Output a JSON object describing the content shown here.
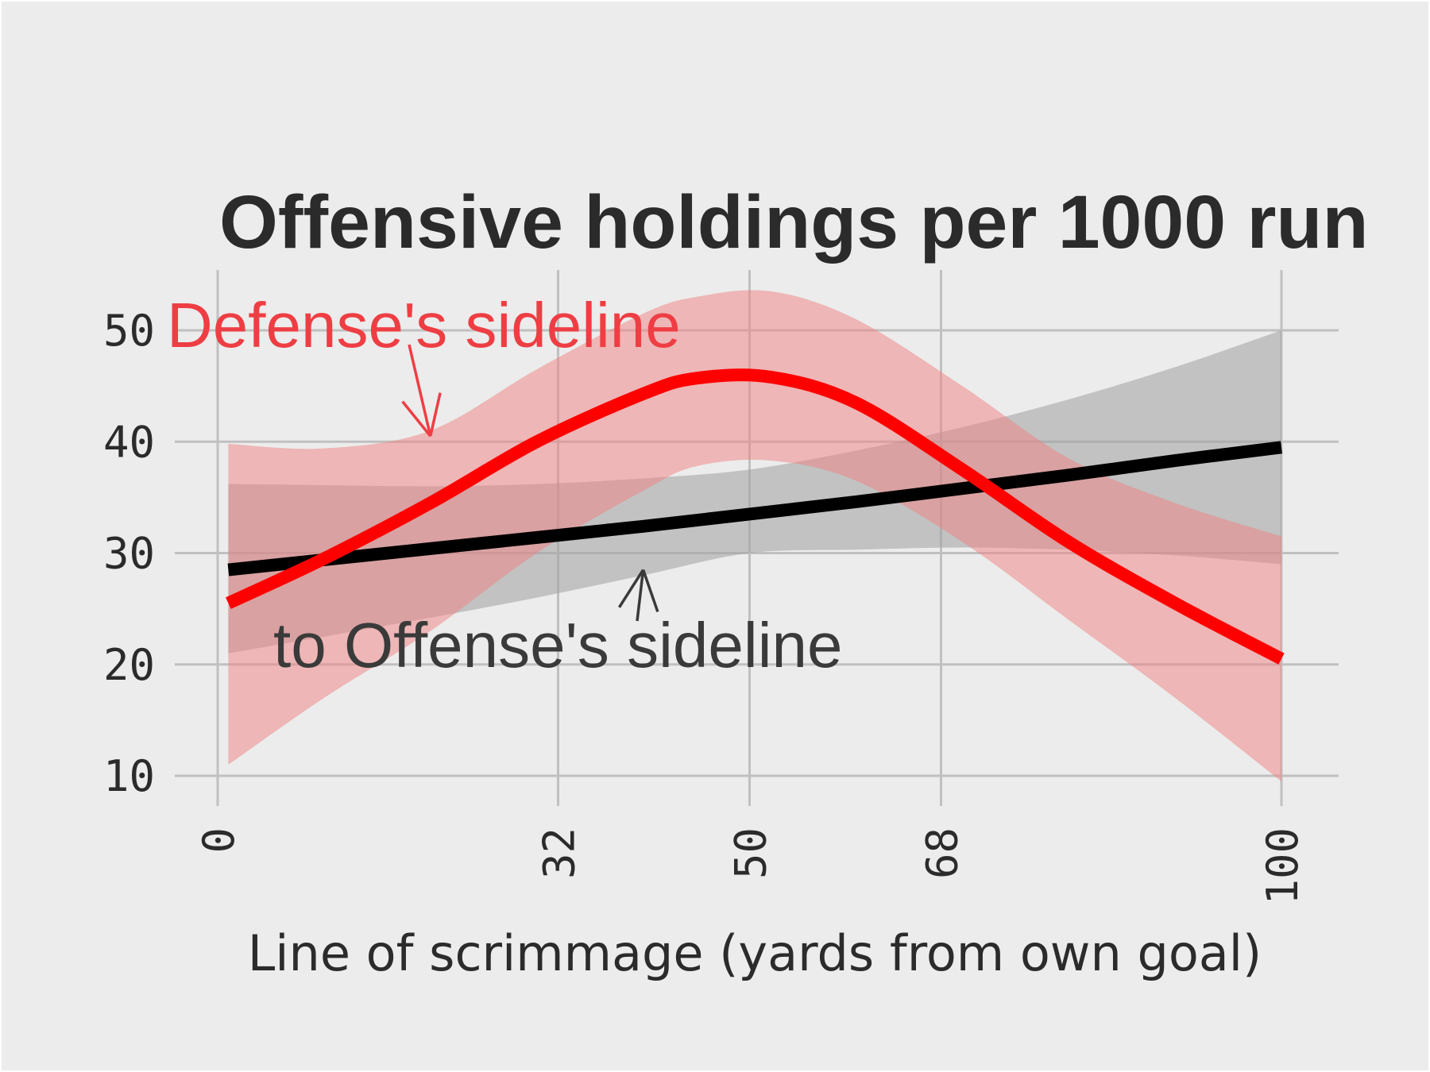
{
  "chart_data": {
    "type": "line",
    "title": "Offensive holdings per 1000 run",
    "xlabel": "Line of scrimmage (yards from own goal)",
    "ylabel": "",
    "xlim": [
      0,
      100
    ],
    "ylim": [
      10,
      50
    ],
    "x_ticks": [
      0,
      32,
      50,
      68,
      100
    ],
    "y_ticks": [
      10,
      20,
      30,
      40,
      50
    ],
    "grid": true,
    "series": [
      {
        "name": "Defense's sideline",
        "color": "#ff0000",
        "band_color": "#f08080",
        "x": [
          1,
          10,
          20,
          30,
          40,
          45,
          52,
          60,
          70,
          80,
          90,
          100
        ],
        "y": [
          25.5,
          29.5,
          34.5,
          40.0,
          44.3,
          45.7,
          45.8,
          43.5,
          37.5,
          31.0,
          25.5,
          20.5
        ],
        "lower": [
          11.0,
          17.0,
          23.0,
          30.0,
          35.6,
          37.8,
          38.3,
          36.5,
          31.0,
          24.0,
          17.0,
          9.5
        ],
        "upper": [
          39.8,
          39.4,
          41.0,
          46.5,
          51.5,
          53.0,
          53.5,
          51.0,
          45.0,
          38.5,
          34.5,
          31.5
        ]
      },
      {
        "name": "Offense's sideline",
        "color": "#000000",
        "band_color": "#a0a0a0",
        "x": [
          1,
          10,
          20,
          30,
          40,
          50,
          60,
          70,
          80,
          90,
          100
        ],
        "y": [
          28.5,
          29.4,
          30.4,
          31.4,
          32.4,
          33.5,
          34.6,
          35.8,
          37.0,
          38.3,
          39.5
        ],
        "lower": [
          21.0,
          22.5,
          24.2,
          26.0,
          28.0,
          30.0,
          30.3,
          30.5,
          30.3,
          29.8,
          29.0
        ],
        "upper": [
          36.2,
          36.1,
          36.0,
          36.2,
          36.7,
          37.5,
          39.2,
          41.3,
          43.8,
          46.7,
          50.0
        ]
      }
    ],
    "annotations": [
      {
        "text": "Defense's sideline",
        "series": 0,
        "color": "#ee3e44",
        "points_to": [
          20,
          40.5
        ]
      },
      {
        "text": "to Offense's sideline",
        "series": 1,
        "color": "#3a3a3a",
        "points_to": [
          40,
          28.5
        ]
      }
    ]
  }
}
